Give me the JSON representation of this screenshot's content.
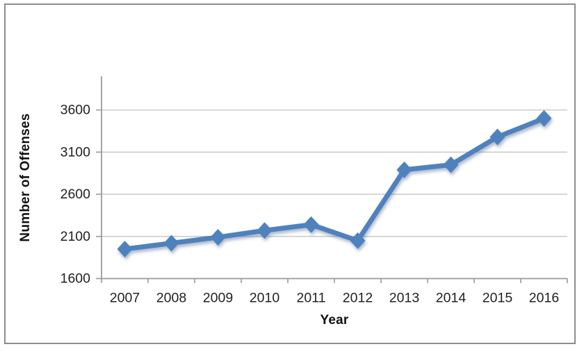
{
  "frame": {
    "border_color": "#8c8c8c",
    "background_color": "#ffffff"
  },
  "chart_data": {
    "type": "line",
    "title": "",
    "xlabel": "Year",
    "ylabel": "Number of Offenses",
    "categories": [
      "2007",
      "2008",
      "2009",
      "2010",
      "2011",
      "2012",
      "2013",
      "2014",
      "2015",
      "2016"
    ],
    "series": [
      {
        "name": "Number of Offenses",
        "values": [
          1950,
          2020,
          2090,
          2170,
          2240,
          2050,
          2890,
          2950,
          3280,
          3500
        ],
        "color": "#4f81bd",
        "marker": "diamond"
      }
    ],
    "yticks": [
      1600,
      2100,
      2600,
      3100,
      3600
    ],
    "ylim": [
      1600,
      4000
    ],
    "grid": true,
    "legend_position": "none",
    "gridline_color": "#c9c9c9",
    "axis_color": "#9a9a9a",
    "tick_label_color": "#1f1f1f"
  }
}
